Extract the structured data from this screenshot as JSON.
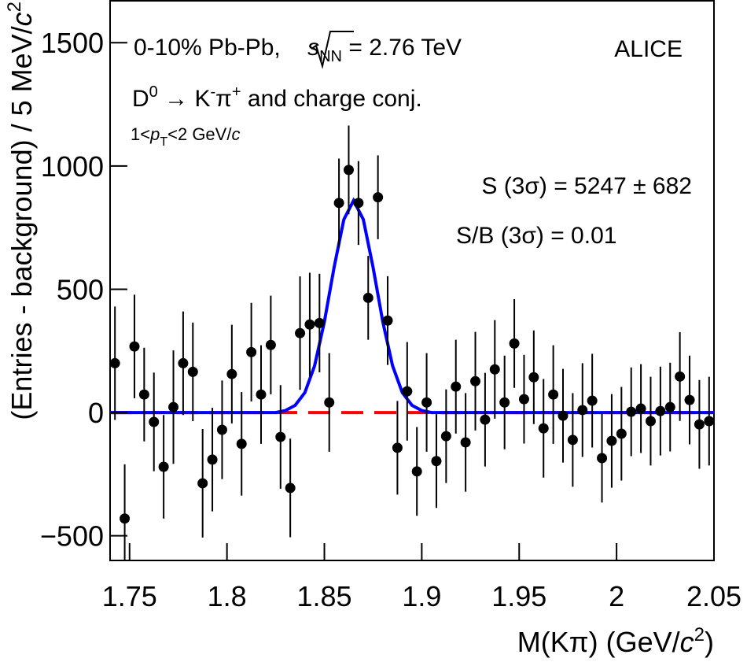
{
  "chart_data": {
    "type": "scatter",
    "x_label": [
      "M(Kπ) (GeV/",
      "c",
      "2",
      ")"
    ],
    "y_label": [
      "(Entries - background) / 5 MeV/",
      "c",
      "2"
    ],
    "annotations": [
      [
        "0-10% Pb-Pb, ",
        "s",
        "NN",
        " = 2.76 TeV"
      ],
      [
        "D",
        "0",
        " → K",
        "-",
        "π",
        "+",
        " and charge conj."
      ],
      [
        "1<",
        "p",
        "T",
        "<2 GeV/",
        "c"
      ],
      "ALICE",
      "S (3σ) = 5247 ± 682",
      "S/B (3σ) = 0.01"
    ],
    "xlim": [
      1.74,
      2.05
    ],
    "ylim": [
      -600,
      1670
    ],
    "xticks": [
      1.75,
      1.8,
      1.85,
      1.9,
      1.95,
      2,
      2.05
    ],
    "yticks": [
      {
        "value": -500,
        "label": "−500"
      },
      0,
      500,
      1000,
      1500
    ],
    "series": [
      {
        "type": "scatter",
        "color": "#000000",
        "x": [
          1.7425,
          1.7475,
          1.7525,
          1.7575,
          1.7625,
          1.7675,
          1.7725,
          1.7775,
          1.7825,
          1.7875,
          1.7925,
          1.7975,
          1.8025,
          1.8075,
          1.8125,
          1.8175,
          1.8225,
          1.8275,
          1.8325,
          1.8375,
          1.8425,
          1.8475,
          1.8525,
          1.8575,
          1.8625,
          1.8675,
          1.8725,
          1.8775,
          1.8825,
          1.8875,
          1.8925,
          1.8975,
          1.9025,
          1.9075,
          1.9125,
          1.9175,
          1.9225,
          1.9275,
          1.9325,
          1.9375,
          1.9425,
          1.9475,
          1.9525,
          1.9575,
          1.9625,
          1.9675,
          1.9725,
          1.9775,
          1.9825,
          1.9875,
          1.9925,
          1.9975,
          2.0025,
          2.0075,
          2.0125,
          2.0175,
          2.0225,
          2.0275,
          2.0325,
          2.0375,
          2.0425,
          2.0475
        ],
        "values": [
          200,
          -430,
          268,
          73,
          -38,
          -220,
          22,
          200,
          165,
          -287,
          -191,
          -70,
          156,
          -127,
          245,
          73,
          274,
          -99,
          -306,
          322,
          357,
          363,
          41,
          850,
          984,
          850,
          465,
          873,
          373,
          -143,
          86,
          -239,
          41,
          -197,
          -96,
          105,
          -121,
          127,
          -29,
          175,
          41,
          280,
          54,
          143,
          -64,
          73,
          -13,
          -111,
          10,
          48,
          -185,
          -115,
          -86,
          3,
          16,
          -35,
          6,
          22,
          146,
          51,
          -48,
          -35
        ],
        "errors": [
          230,
          220,
          210,
          190,
          200,
          210,
          230,
          210,
          200,
          220,
          210,
          200,
          200,
          210,
          200,
          200,
          200,
          210,
          200,
          230,
          210,
          200,
          200,
          180,
          180,
          170,
          170,
          170,
          180,
          190,
          200,
          180,
          200,
          190,
          190,
          190,
          200,
          200,
          190,
          200,
          190,
          180,
          180,
          190,
          200,
          200,
          190,
          190,
          190,
          190,
          180,
          190,
          190,
          180,
          180,
          180,
          180,
          180,
          180,
          180,
          180,
          180
        ]
      },
      {
        "type": "line",
        "color": "#0000ff",
        "x": [
          1.74,
          1.825,
          1.83,
          1.835,
          1.84,
          1.845,
          1.85,
          1.855,
          1.86,
          1.865,
          1.87,
          1.875,
          1.88,
          1.885,
          1.89,
          1.895,
          1.9,
          1.905,
          2.05
        ],
        "values": [
          0,
          0,
          8,
          29,
          81,
          190,
          368,
          589,
          783,
          860,
          783,
          589,
          368,
          190,
          81,
          29,
          8,
          0,
          0
        ]
      },
      {
        "type": "line",
        "color": "#ff0000",
        "dashed": true,
        "x": [
          1.74,
          2.05
        ],
        "values": [
          0,
          0
        ]
      }
    ]
  }
}
